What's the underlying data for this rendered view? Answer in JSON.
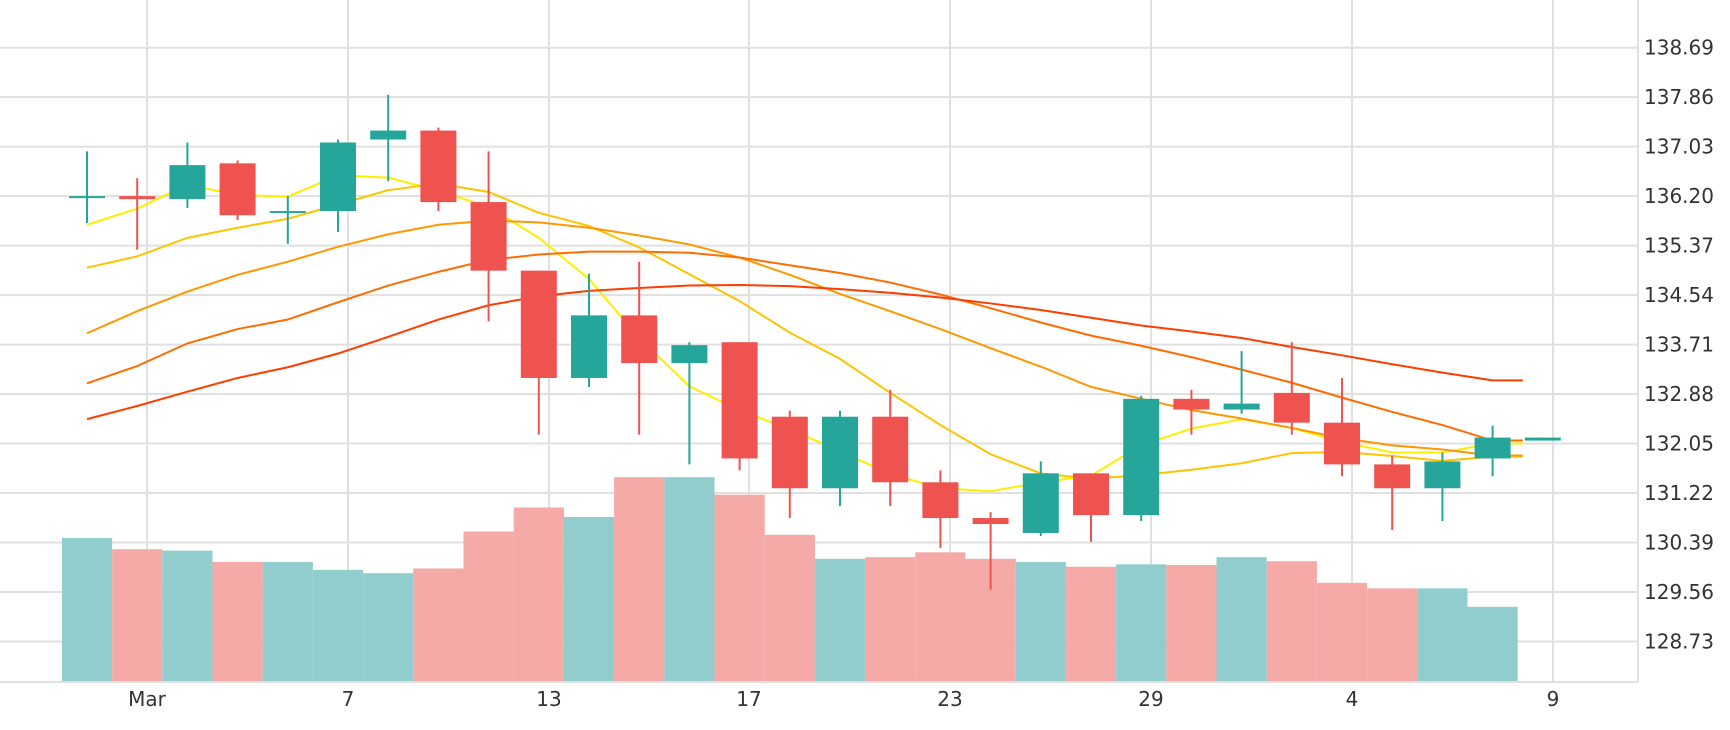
{
  "chart_data": {
    "type": "candlestick",
    "x_tick_labels": [
      "Mar",
      "7",
      "13",
      "17",
      "23",
      "29",
      "4",
      "9"
    ],
    "y_tick_labels": [
      "138.69",
      "137.86",
      "137.03",
      "136.20",
      "135.37",
      "134.54",
      "133.71",
      "132.88",
      "132.05",
      "131.22",
      "130.39",
      "129.56",
      "128.73"
    ],
    "ylim": [
      128.05,
      139.49
    ],
    "grid": true,
    "colors": {
      "up": "#26a69a",
      "down": "#ef5350",
      "volume_up": "#92cdce",
      "volume_down": "#f5aaa8",
      "grid": "#e0e0e0",
      "ma_colors": [
        "#ffee00",
        "#ffc400",
        "#ff9800",
        "#ff6d00",
        "#ff3d00"
      ]
    },
    "candles": [
      {
        "o": 136.2,
        "h": 136.95,
        "l": 135.75,
        "c": 136.2
      },
      {
        "o": 136.2,
        "h": 136.5,
        "l": 135.3,
        "c": 136.15
      },
      {
        "o": 136.15,
        "h": 137.1,
        "l": 136.0,
        "c": 136.72
      },
      {
        "o": 136.75,
        "h": 136.8,
        "l": 135.8,
        "c": 135.88
      },
      {
        "o": 135.95,
        "h": 136.2,
        "l": 135.4,
        "c": 135.95
      },
      {
        "o": 135.95,
        "h": 137.15,
        "l": 135.6,
        "c": 137.1
      },
      {
        "o": 137.15,
        "h": 137.9,
        "l": 136.45,
        "c": 137.3
      },
      {
        "o": 137.3,
        "h": 137.35,
        "l": 135.95,
        "c": 136.1
      },
      {
        "o": 136.1,
        "h": 136.95,
        "l": 134.1,
        "c": 134.95
      },
      {
        "o": 134.95,
        "h": 134.95,
        "l": 132.2,
        "c": 133.15
      },
      {
        "o": 133.15,
        "h": 134.9,
        "l": 133.0,
        "c": 134.2
      },
      {
        "o": 134.2,
        "h": 135.1,
        "l": 132.2,
        "c": 133.4
      },
      {
        "o": 133.4,
        "h": 133.75,
        "l": 131.7,
        "c": 133.7
      },
      {
        "o": 133.75,
        "h": 133.75,
        "l": 131.6,
        "c": 131.8
      },
      {
        "o": 132.5,
        "h": 132.6,
        "l": 130.8,
        "c": 131.3
      },
      {
        "o": 131.3,
        "h": 132.6,
        "l": 131.0,
        "c": 132.5
      },
      {
        "o": 132.5,
        "h": 132.95,
        "l": 131.0,
        "c": 131.4
      },
      {
        "o": 131.4,
        "h": 131.6,
        "l": 130.3,
        "c": 130.8
      },
      {
        "o": 130.8,
        "h": 130.9,
        "l": 129.6,
        "c": 130.7
      },
      {
        "o": 130.55,
        "h": 131.75,
        "l": 130.5,
        "c": 131.55
      },
      {
        "o": 131.55,
        "h": 131.55,
        "l": 130.4,
        "c": 130.85
      },
      {
        "o": 130.85,
        "h": 132.85,
        "l": 130.75,
        "c": 132.8
      },
      {
        "o": 132.8,
        "h": 132.95,
        "l": 132.2,
        "c": 132.62
      },
      {
        "o": 132.62,
        "h": 133.6,
        "l": 132.55,
        "c": 132.72
      },
      {
        "o": 132.9,
        "h": 133.75,
        "l": 132.2,
        "c": 132.4
      },
      {
        "o": 132.4,
        "h": 133.15,
        "l": 131.5,
        "c": 131.7
      },
      {
        "o": 131.7,
        "h": 131.85,
        "l": 130.6,
        "c": 131.3
      },
      {
        "o": 131.3,
        "h": 131.9,
        "l": 130.75,
        "c": 131.75
      },
      {
        "o": 131.8,
        "h": 132.35,
        "l": 131.5,
        "c": 132.15
      },
      {
        "o": 132.1,
        "h": 132.15,
        "l": 132.1,
        "c": 132.15
      }
    ],
    "volume_pct": [
      0.6,
      0.553,
      0.547,
      0.5,
      0.5,
      0.467,
      0.453,
      0.473,
      0.627,
      0.727,
      0.687,
      0.853,
      0.853,
      0.78,
      0.613,
      0.513,
      0.52,
      0.54,
      0.513,
      0.5,
      0.48,
      0.49,
      0.487,
      0.52,
      0.503,
      0.413,
      0.39,
      0.39,
      0.313
    ],
    "moving_averages": [
      [
        135.72,
        135.99,
        136.39,
        136.22,
        136.19,
        136.55,
        136.51,
        136.29,
        136.02,
        135.5,
        134.81,
        133.82,
        133.01,
        132.61,
        132.29,
        131.92,
        131.54,
        131.3,
        131.25,
        131.4,
        131.51,
        132.02,
        132.3,
        132.46,
        132.31,
        132.08,
        131.9,
        131.9,
        132.05
      ],
      [
        135.0,
        135.19,
        135.5,
        135.67,
        135.82,
        136.06,
        136.3,
        136.41,
        136.27,
        135.92,
        135.7,
        135.34,
        134.89,
        134.44,
        133.91,
        133.47,
        132.9,
        132.36,
        131.87,
        131.55,
        131.46,
        131.52,
        131.61,
        131.72,
        131.89,
        131.91,
        131.84,
        131.76,
        131.83
      ],
      [
        133.9,
        134.27,
        134.6,
        134.88,
        135.1,
        135.35,
        135.56,
        135.72,
        135.79,
        135.76,
        135.67,
        135.54,
        135.39,
        135.17,
        134.88,
        134.56,
        134.27,
        133.97,
        133.65,
        133.34,
        133.0,
        132.8,
        132.61,
        132.47,
        132.31,
        132.14,
        132.02,
        131.95,
        131.85
      ],
      [
        133.06,
        133.35,
        133.73,
        133.97,
        134.13,
        134.42,
        134.7,
        134.93,
        135.13,
        135.22,
        135.27,
        135.27,
        135.25,
        135.17,
        135.04,
        134.91,
        134.75,
        134.55,
        134.32,
        134.08,
        133.86,
        133.69,
        133.5,
        133.29,
        133.07,
        132.82,
        132.58,
        132.36,
        132.1
      ],
      [
        132.46,
        132.68,
        132.92,
        133.15,
        133.33,
        133.56,
        133.84,
        134.13,
        134.37,
        134.52,
        134.61,
        134.66,
        134.7,
        134.71,
        134.69,
        134.64,
        134.58,
        134.5,
        134.4,
        134.29,
        134.16,
        134.03,
        133.93,
        133.82,
        133.67,
        133.53,
        133.38,
        133.24,
        133.11
      ]
    ]
  }
}
